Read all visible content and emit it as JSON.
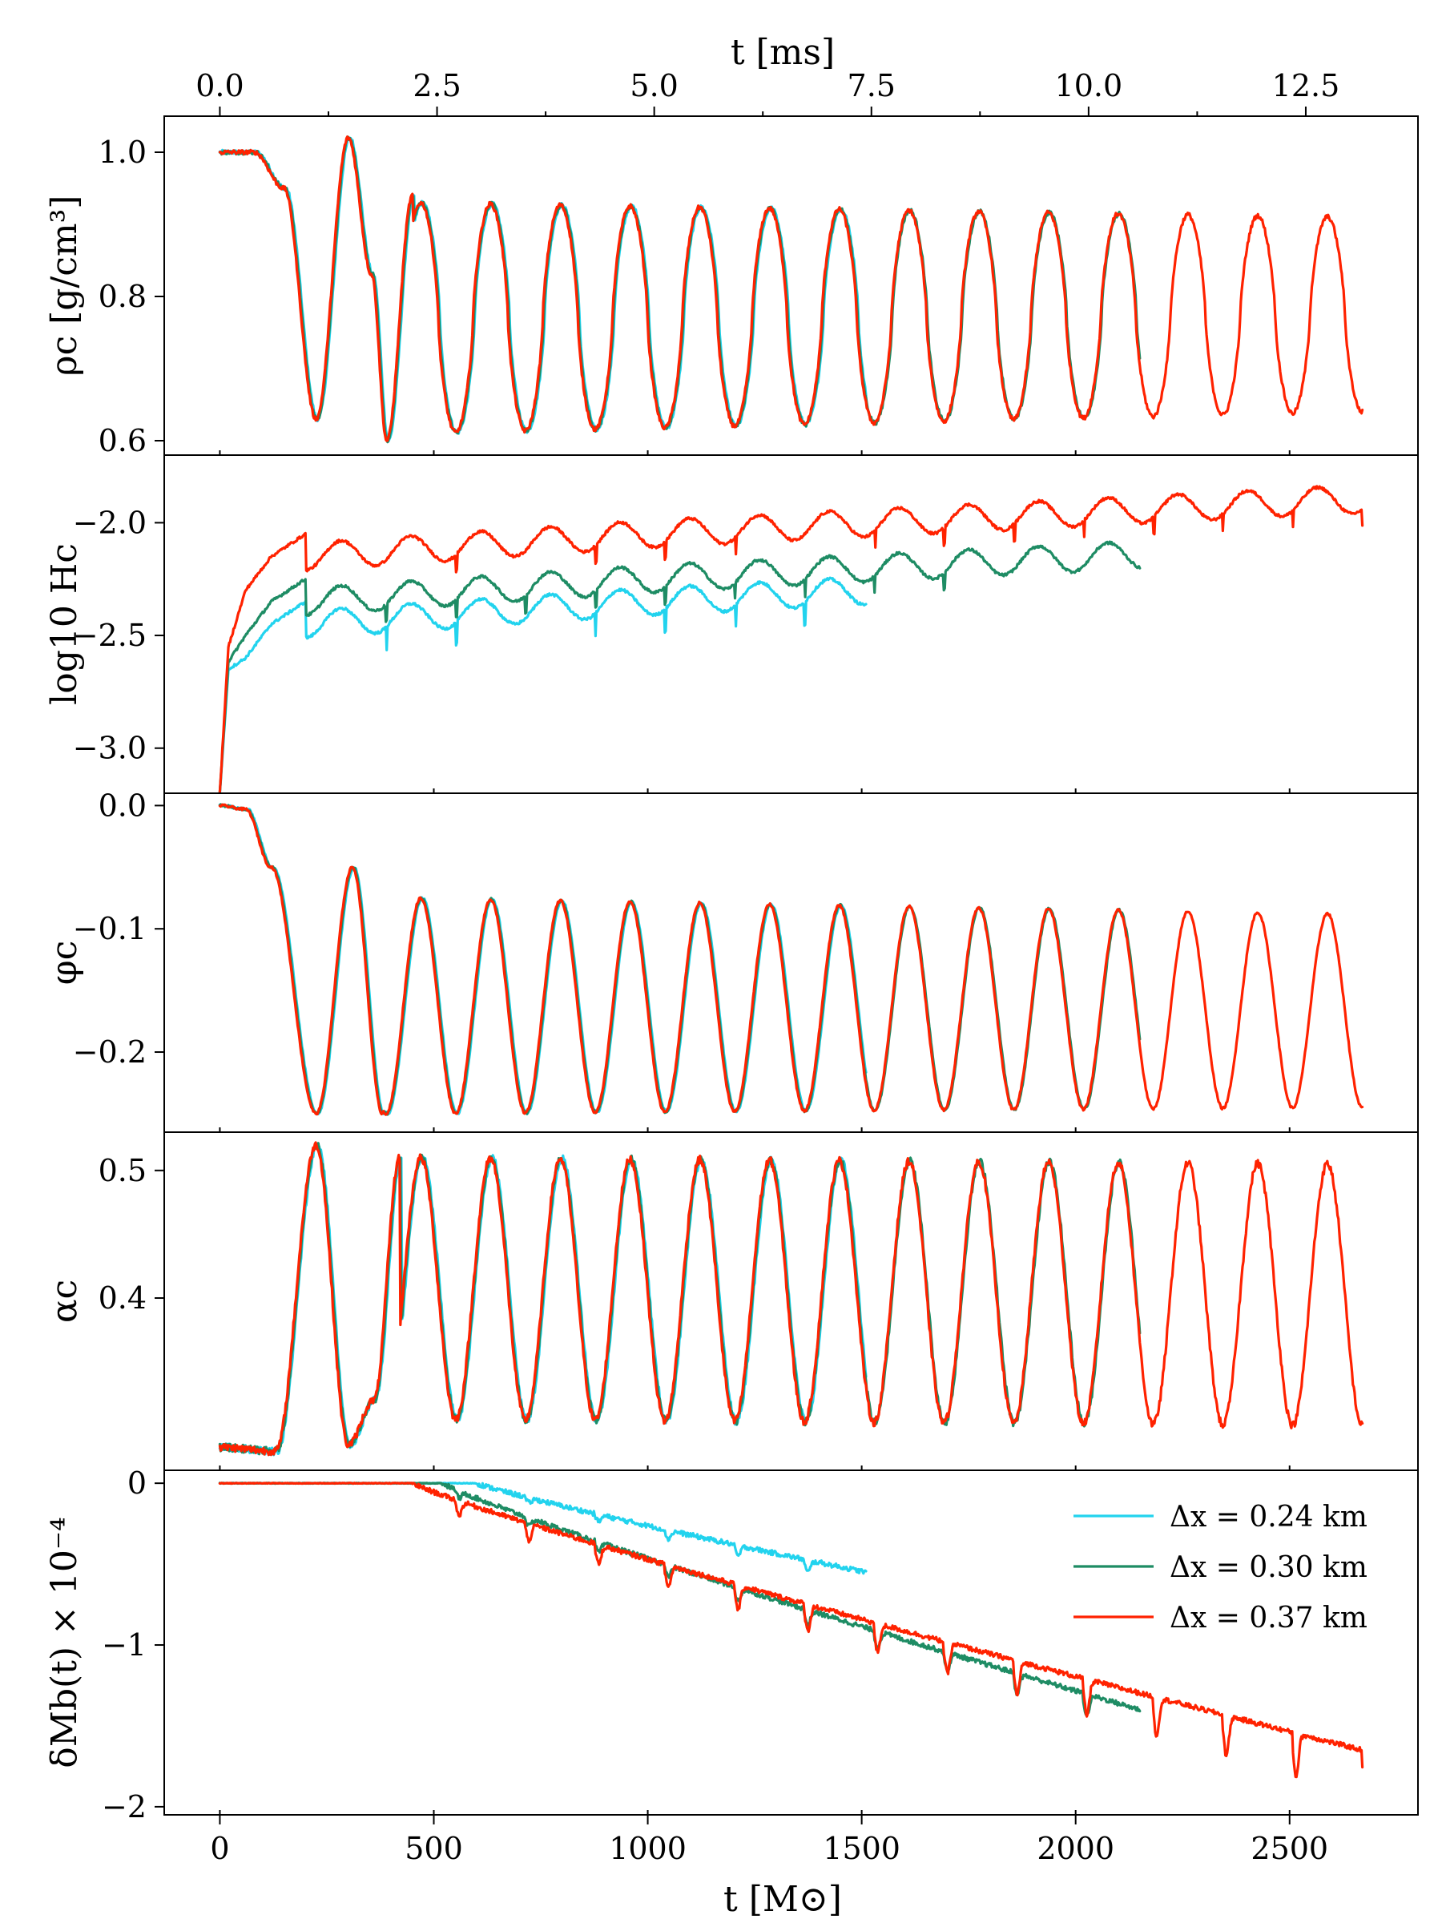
{
  "chart_data": {
    "type": "line",
    "top_axis": {
      "label": "t [ms]",
      "ticks": [
        0.0,
        2.5,
        5.0,
        7.5,
        10.0,
        12.5
      ],
      "tick_labels": [
        "0.0",
        "2.5",
        "5.0",
        "7.5",
        "10.0",
        "12.5"
      ]
    },
    "x_axis": {
      "label": "t [M⊙]",
      "range": [
        -130,
        2800
      ],
      "ticks": [
        0,
        500,
        1000,
        1500,
        2000,
        2500
      ],
      "tick_labels": [
        "0",
        "500",
        "1000",
        "1500",
        "2000",
        "2500"
      ]
    },
    "legend": {
      "placement": "upper-right of bottom panel",
      "entries": [
        {
          "label": "Δx = 0.24 km",
          "color": "#22d3ee"
        },
        {
          "label": "Δx = 0.30 km",
          "color": "#1e8c64"
        },
        {
          "label": "Δx = 0.37 km",
          "color": "#ff2200"
        }
      ]
    },
    "series_meta": [
      {
        "color": "#22d3ee",
        "t_end": 1510
      },
      {
        "color": "#1e8c64",
        "t_end": 2150
      },
      {
        "color": "#ff2200",
        "t_end": 2670
      }
    ],
    "panels": [
      {
        "ylabel": "ρc [g/cm³]",
        "ylim": [
          0.58,
          1.05
        ],
        "yticks": [
          0.6,
          0.8,
          1.0
        ],
        "ytick_labels": [
          "0.6",
          "0.8",
          "1.0"
        ],
        "period": 163,
        "first_min_t": 225,
        "oscillation": {
          "max": [
            0.93,
            0.91
          ],
          "min": [
            0.61,
            0.64
          ]
        },
        "early_points": [
          [
            0,
            1.0
          ],
          [
            80,
            1.0
          ],
          [
            150,
            0.95
          ],
          [
            225,
            0.63
          ],
          [
            300,
            1.02
          ],
          [
            355,
            0.83
          ],
          [
            390,
            0.6
          ],
          [
            450,
            0.94
          ]
        ]
      },
      {
        "ylabel": "log10 Hc",
        "ylim": [
          -3.2,
          -1.7
        ],
        "yticks": [
          -3.0,
          -2.5,
          -2.0
        ],
        "ytick_labels": [
          "−3.0",
          "−2.5",
          "−2.0"
        ],
        "series_offsets": [
          -0.3,
          -0.2,
          0.0
        ],
        "early_points": [
          [
            0,
            -3.2
          ],
          [
            20,
            -2.55
          ],
          [
            60,
            -2.3
          ],
          [
            120,
            -2.15
          ],
          [
            200,
            -2.05
          ]
        ],
        "trend": [
          [
            200,
            -2.15
          ],
          [
            1000,
            -2.05
          ],
          [
            2600,
            -1.9
          ]
        ],
        "osc_amplitude": 0.06
      },
      {
        "ylabel": "φc",
        "ylim": [
          -0.265,
          0.01
        ],
        "yticks": [
          -0.2,
          -0.1,
          0.0
        ],
        "ytick_labels": [
          "−0.2",
          "−0.1",
          "0.0"
        ],
        "early_points": [
          [
            0,
            0.0
          ],
          [
            60,
            -0.003
          ],
          [
            120,
            -0.05
          ],
          [
            225,
            -0.25
          ],
          [
            310,
            -0.05
          ],
          [
            380,
            -0.25
          ]
        ],
        "oscillation": {
          "max": [
            -0.075,
            -0.088
          ],
          "min": [
            -0.25,
            -0.245
          ]
        }
      },
      {
        "ylabel": "αc",
        "ylim": [
          0.265,
          0.53
        ],
        "yticks": [
          0.4,
          0.5
        ],
        "ytick_labels": [
          "0.4",
          "0.5"
        ],
        "early_points": [
          [
            0,
            0.283
          ],
          [
            130,
            0.28
          ],
          [
            225,
            0.52
          ],
          [
            300,
            0.285
          ],
          [
            360,
            0.32
          ],
          [
            420,
            0.51
          ]
        ],
        "oscillation": {
          "max": [
            0.51,
            0.505
          ],
          "min": [
            0.305,
            0.3
          ]
        }
      },
      {
        "ylabel": "δMb(t) × 10⁻⁴",
        "ylim": [
          -2.05,
          0.08
        ],
        "yticks": [
          -2,
          -1,
          0
        ],
        "ytick_labels": [
          "−2",
          "−1",
          "0"
        ],
        "onset": [
          600,
          520,
          450
        ],
        "final": [
          -0.55,
          -1.4,
          -1.65
        ],
        "dip_depth": [
          0.06,
          0.1,
          0.2
        ]
      }
    ]
  }
}
